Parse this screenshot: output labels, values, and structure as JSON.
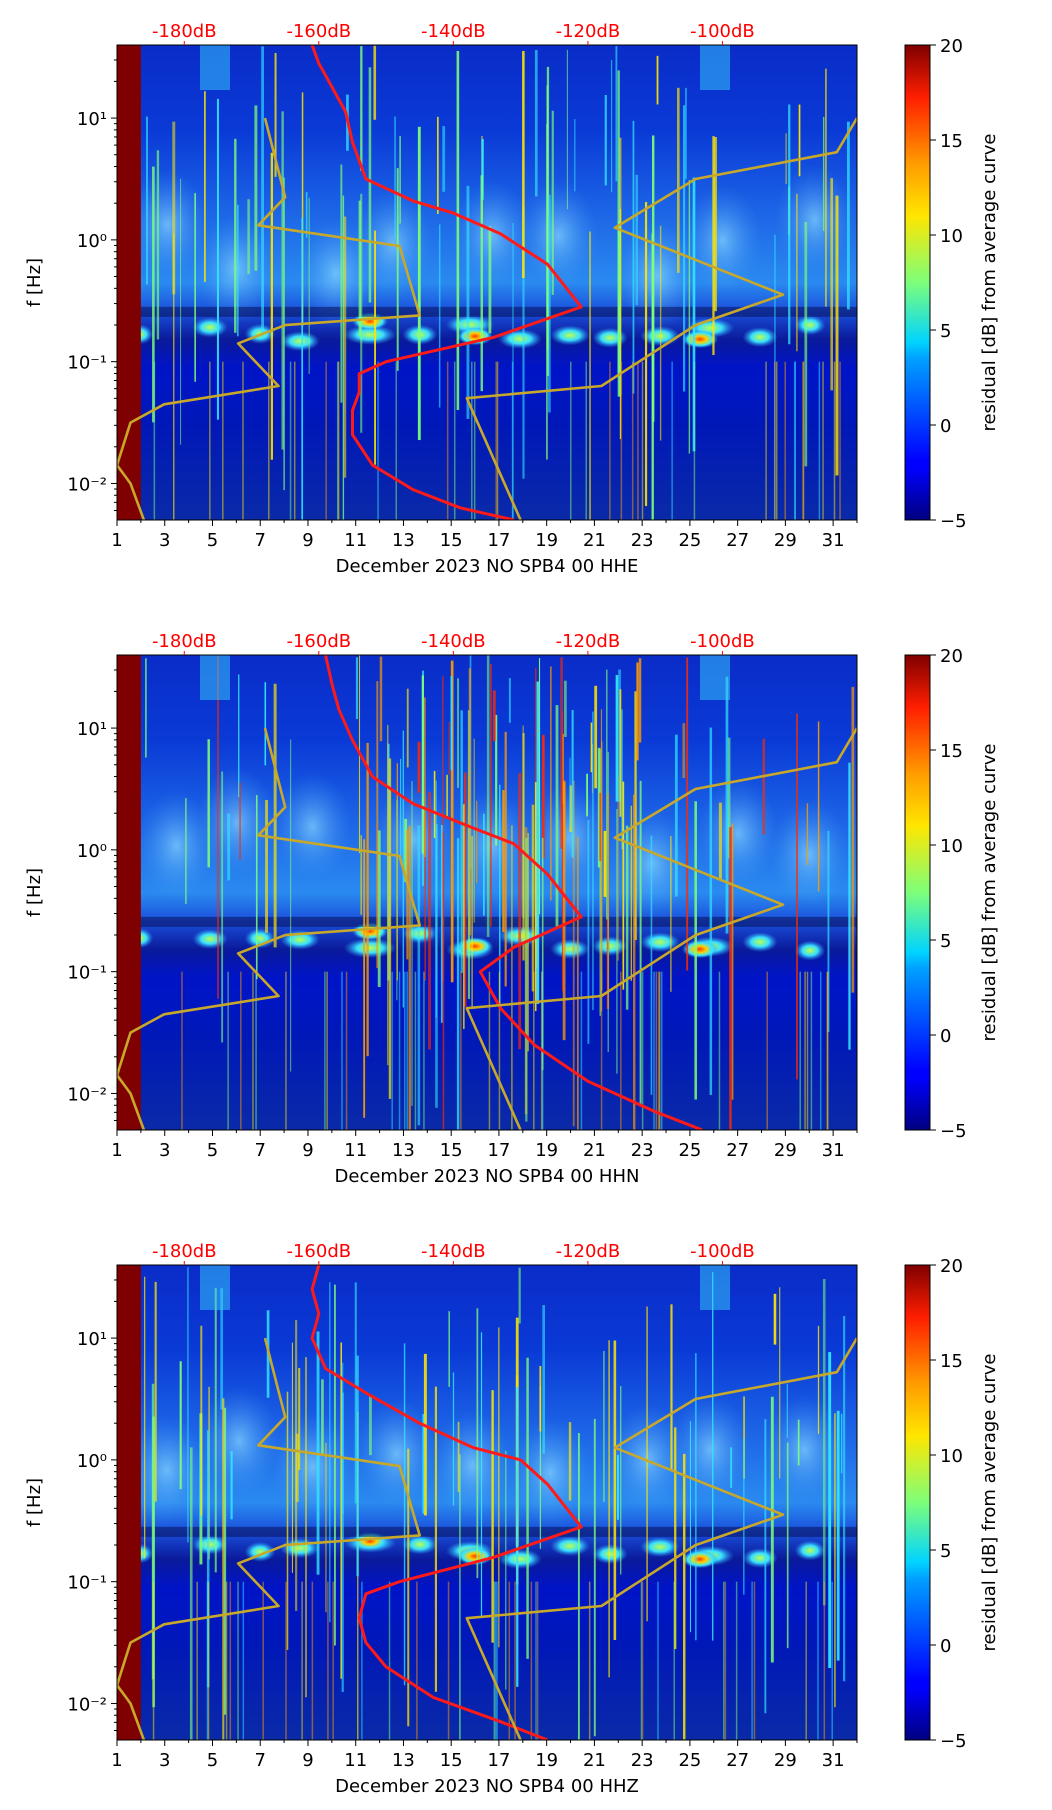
{
  "figure": {
    "colorbar_label": "residual [dB] from average curve",
    "colorbar_ticks": [
      "20",
      "15",
      "10",
      "5",
      "0",
      "−5"
    ],
    "top_axis_ticks": [
      "-180dB",
      "-160dB",
      "-140dB",
      "-120dB",
      "-100dB"
    ],
    "y_ticks": [
      "10¹",
      "10⁰",
      "10⁻¹",
      "10⁻²"
    ],
    "x_ticks": [
      "1",
      "3",
      "5",
      "7",
      "9",
      "11",
      "13",
      "15",
      "17",
      "19",
      "21",
      "23",
      "25",
      "27",
      "29",
      "31"
    ],
    "ylabel": "f [Hz]",
    "colors": {
      "psd_curve": "#ff1a1a",
      "noise_model": "#c8a82a",
      "top_ticks": "#ff0000"
    }
  },
  "chart_data": [
    {
      "type": "heatmap",
      "title": "",
      "xlabel": "December 2023 NO SPB4 00 HHE",
      "ylabel": "f [Hz]",
      "x_range": [
        1,
        32
      ],
      "y_range_log10": [
        -2.3,
        1.6
      ],
      "colorbar_range": [
        -5,
        20
      ],
      "top_axis": {
        "label_range_dB": [
          -190,
          -80
        ]
      },
      "series": [
        {
          "name": "average PSD (red)",
          "points": [
            [
              -161,
              1.6
            ],
            [
              -160,
              1.45
            ],
            [
              -158,
              1.25
            ],
            [
              -156,
              1.05
            ],
            [
              -155,
              0.8
            ],
            [
              -153,
              0.5
            ],
            [
              -146,
              0.32
            ],
            [
              -140,
              0.22
            ],
            [
              -133,
              0.05
            ],
            [
              -126,
              -0.2
            ],
            [
              -121,
              -0.55
            ],
            [
              -134,
              -0.8
            ],
            [
              -150,
              -1.0
            ],
            [
              -154,
              -1.1
            ],
            [
              -154,
              -1.25
            ],
            [
              -155,
              -1.4
            ],
            [
              -155,
              -1.6
            ],
            [
              -152,
              -1.85
            ],
            [
              -146,
              -2.05
            ],
            [
              -139,
              -2.2
            ],
            [
              -131,
              -2.3
            ]
          ]
        },
        {
          "name": "NLNM (yellow)",
          "points": [
            [
              -168,
              1.0
            ],
            [
              -165,
              0.35
            ],
            [
              -169,
              0.12
            ],
            [
              -148,
              -0.05
            ],
            [
              -145,
              -0.62
            ],
            [
              -165,
              -0.7
            ],
            [
              -172,
              -0.85
            ],
            [
              -166,
              -1.2
            ],
            [
              -183,
              -1.35
            ],
            [
              -188,
              -1.5
            ],
            [
              -190,
              -1.85
            ],
            [
              -188,
              -2.0
            ],
            [
              -186,
              -2.3
            ]
          ]
        },
        {
          "name": "NHNM (yellow)",
          "points": [
            [
              -80,
              1.0
            ],
            [
              -83,
              0.72
            ],
            [
              -104,
              0.5
            ],
            [
              -116,
              0.1
            ],
            [
              -91,
              -0.45
            ],
            [
              -104,
              -0.7
            ],
            [
              -118,
              -1.2
            ],
            [
              -138,
              -1.3
            ],
            [
              -130,
              -2.3
            ]
          ]
        }
      ]
    },
    {
      "type": "heatmap",
      "title": "",
      "xlabel": "December 2023 NO SPB4 00 HHN",
      "ylabel": "f [Hz]",
      "x_range": [
        1,
        32
      ],
      "y_range_log10": [
        -2.3,
        1.6
      ],
      "colorbar_range": [
        -5,
        20
      ],
      "top_axis": {
        "label_range_dB": [
          -190,
          -80
        ]
      },
      "series": [
        {
          "name": "average PSD (red)",
          "points": [
            [
              -159,
              1.6
            ],
            [
              -158,
              1.35
            ],
            [
              -157,
              1.15
            ],
            [
              -155,
              0.9
            ],
            [
              -152,
              0.6
            ],
            [
              -146,
              0.38
            ],
            [
              -138,
              0.2
            ],
            [
              -131,
              0.05
            ],
            [
              -126,
              -0.2
            ],
            [
              -121,
              -0.55
            ],
            [
              -131,
              -0.8
            ],
            [
              -136,
              -1.0
            ],
            [
              -133,
              -1.3
            ],
            [
              -128,
              -1.6
            ],
            [
              -120,
              -1.9
            ],
            [
              -110,
              -2.15
            ],
            [
              -103,
              -2.3
            ]
          ]
        },
        {
          "name": "NLNM (yellow)",
          "points": [
            [
              -168,
              1.0
            ],
            [
              -165,
              0.35
            ],
            [
              -169,
              0.12
            ],
            [
              -148,
              -0.05
            ],
            [
              -145,
              -0.62
            ],
            [
              -165,
              -0.7
            ],
            [
              -172,
              -0.85
            ],
            [
              -166,
              -1.2
            ],
            [
              -183,
              -1.35
            ],
            [
              -188,
              -1.5
            ],
            [
              -190,
              -1.85
            ],
            [
              -188,
              -2.0
            ],
            [
              -186,
              -2.3
            ]
          ]
        },
        {
          "name": "NHNM (yellow)",
          "points": [
            [
              -80,
              1.0
            ],
            [
              -83,
              0.72
            ],
            [
              -104,
              0.5
            ],
            [
              -116,
              0.1
            ],
            [
              -91,
              -0.45
            ],
            [
              -104,
              -0.7
            ],
            [
              -118,
              -1.2
            ],
            [
              -138,
              -1.3
            ],
            [
              -130,
              -2.3
            ]
          ]
        }
      ]
    },
    {
      "type": "heatmap",
      "title": "",
      "xlabel": "December 2023 NO SPB4 00 HHZ",
      "ylabel": "f [Hz]",
      "x_range": [
        1,
        32
      ],
      "y_range_log10": [
        -2.3,
        1.6
      ],
      "colorbar_range": [
        -5,
        20
      ],
      "top_axis": {
        "label_range_dB": [
          -190,
          -80
        ]
      },
      "series": [
        {
          "name": "average PSD (red)",
          "points": [
            [
              -160,
              1.6
            ],
            [
              -161,
              1.4
            ],
            [
              -160,
              1.2
            ],
            [
              -161,
              1.0
            ],
            [
              -159,
              0.75
            ],
            [
              -153,
              0.55
            ],
            [
              -145,
              0.3
            ],
            [
              -137,
              0.1
            ],
            [
              -130,
              0.0
            ],
            [
              -126,
              -0.2
            ],
            [
              -121,
              -0.55
            ],
            [
              -134,
              -0.8
            ],
            [
              -148,
              -1.0
            ],
            [
              -153,
              -1.1
            ],
            [
              -154,
              -1.3
            ],
            [
              -153,
              -1.5
            ],
            [
              -150,
              -1.7
            ],
            [
              -143,
              -1.95
            ],
            [
              -133,
              -2.15
            ],
            [
              -126,
              -2.3
            ]
          ]
        },
        {
          "name": "NLNM (yellow)",
          "points": [
            [
              -168,
              1.0
            ],
            [
              -165,
              0.35
            ],
            [
              -169,
              0.12
            ],
            [
              -148,
              -0.05
            ],
            [
              -145,
              -0.62
            ],
            [
              -165,
              -0.7
            ],
            [
              -172,
              -0.85
            ],
            [
              -166,
              -1.2
            ],
            [
              -183,
              -1.35
            ],
            [
              -188,
              -1.5
            ],
            [
              -190,
              -1.85
            ],
            [
              -188,
              -2.0
            ],
            [
              -186,
              -2.3
            ]
          ]
        },
        {
          "name": "NHNM (yellow)",
          "points": [
            [
              -80,
              1.0
            ],
            [
              -83,
              0.72
            ],
            [
              -104,
              0.5
            ],
            [
              -116,
              0.1
            ],
            [
              -91,
              -0.45
            ],
            [
              -104,
              -0.7
            ],
            [
              -118,
              -1.2
            ],
            [
              -138,
              -1.3
            ],
            [
              -130,
              -2.3
            ]
          ]
        }
      ]
    }
  ]
}
